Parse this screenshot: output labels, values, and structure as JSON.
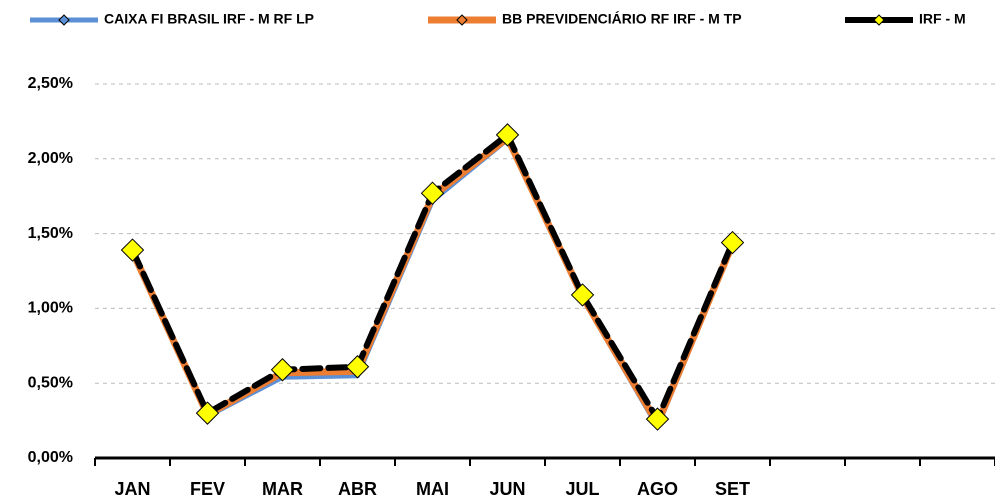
{
  "chart_data": {
    "type": "line",
    "categories": [
      "JAN",
      "FEV",
      "MAR",
      "ABR",
      "MAI",
      "JUN",
      "JUL",
      "AGO",
      "SET",
      null,
      null,
      null
    ],
    "series": [
      {
        "name": "CAIXA FI BRASIL IRF - M RF LP",
        "color": "#5b8fd6",
        "values": [
          1.38,
          0.28,
          0.54,
          0.55,
          1.72,
          2.13,
          1.07,
          0.21,
          1.42,
          null,
          null,
          null
        ]
      },
      {
        "name": "BB PREVIDENCIÁRIO RF IRF - M TP",
        "color": "#ed7d31",
        "values": [
          1.38,
          0.29,
          0.57,
          0.58,
          1.75,
          2.14,
          1.08,
          0.23,
          1.43,
          null,
          null,
          null
        ]
      },
      {
        "name": "IRF - M",
        "color": "#000000",
        "values": [
          1.39,
          0.3,
          0.59,
          0.61,
          1.77,
          2.16,
          1.09,
          0.26,
          1.44,
          null,
          null,
          null
        ]
      }
    ],
    "ylim": [
      0,
      2.5
    ],
    "yticks": [
      {
        "value": 0,
        "label": "0,00%"
      },
      {
        "value": 0.5,
        "label": "0,50%"
      },
      {
        "value": 1,
        "label": "1,00%"
      },
      {
        "value": 1.5,
        "label": "1,50%"
      },
      {
        "value": 2,
        "label": "2,00%"
      },
      {
        "value": 2.5,
        "label": "2,50%"
      }
    ],
    "grid": true,
    "legend": "top"
  }
}
